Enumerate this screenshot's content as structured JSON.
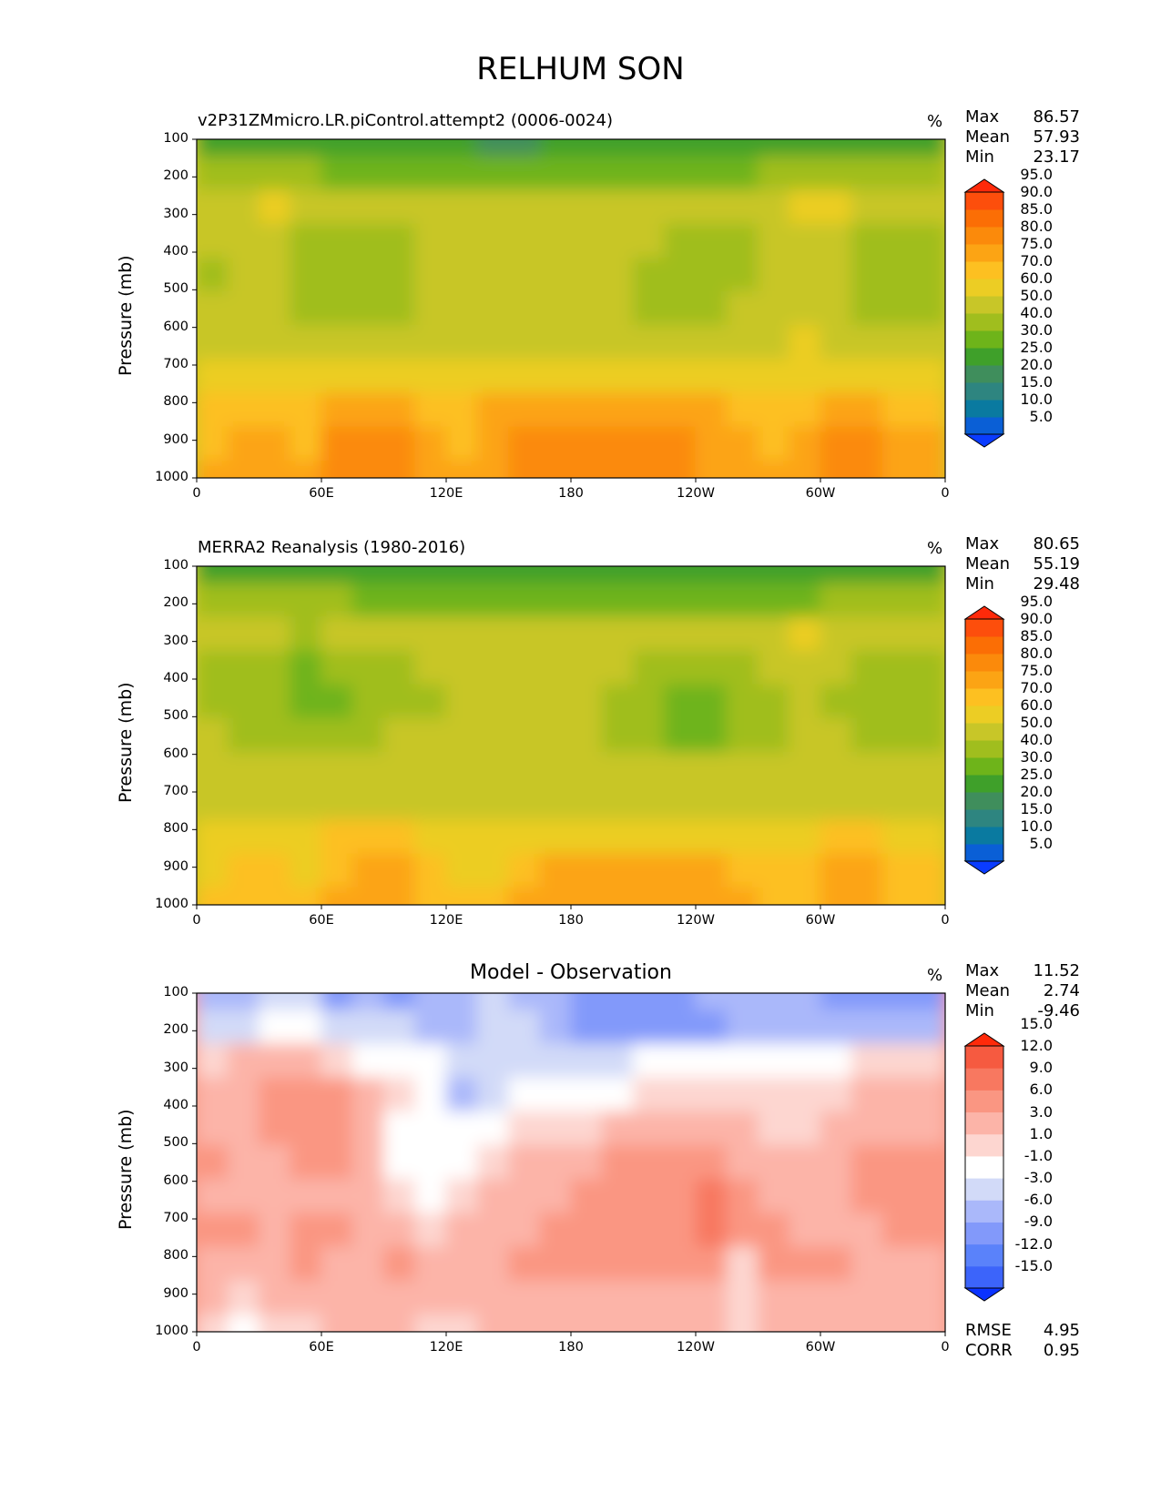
{
  "title": "RELHUM SON",
  "chart_data": [
    {
      "type": "heatmap",
      "panel": "test",
      "title": "v2P31ZMmicro.LR.piControl.attempt2 (0006-0024)",
      "units": "%",
      "ylabel": "Pressure (mb)",
      "xticks": [
        "0",
        "60E",
        "120E",
        "180",
        "120W",
        "60W",
        "0"
      ],
      "yticks": [
        "100",
        "200",
        "300",
        "400",
        "500",
        "600",
        "700",
        "800",
        "900",
        "1000"
      ],
      "xlim": [
        0,
        360
      ],
      "ylim": [
        1000,
        100
      ],
      "stats": {
        "max_label": "Max",
        "max": "86.57",
        "mean_label": "Mean",
        "mean": "57.93",
        "min_label": "Min",
        "min": "23.17"
      },
      "colorbar": {
        "levels": [
          "5.0",
          "10.0",
          "15.0",
          "20.0",
          "25.0",
          "30.0",
          "40.0",
          "50.0",
          "60.0",
          "70.0",
          "75.0",
          "80.0",
          "85.0",
          "90.0",
          "95.0"
        ],
        "colors": [
          "#0a3cff",
          "#0a5fd6",
          "#0a7aa0",
          "#2e8580",
          "#3f8e5c",
          "#3fa02a",
          "#6eb41a",
          "#a0be1e",
          "#c8c628",
          "#eccd24",
          "#fdc021",
          "#fca414",
          "#fb8a0b",
          "#fb6e05",
          "#fd4e0c",
          "#ff2a0a"
        ]
      },
      "fill_grid": [
        [
          5,
          5,
          5,
          5,
          5,
          5,
          5,
          5,
          5,
          4,
          4,
          5,
          5,
          5,
          5,
          5,
          5,
          5,
          5,
          5,
          5,
          5,
          5,
          5
        ],
        [
          7,
          7,
          7,
          7,
          6,
          6,
          6,
          6,
          6,
          6,
          6,
          6,
          6,
          6,
          6,
          6,
          6,
          6,
          7,
          7,
          7,
          7,
          7,
          7
        ],
        [
          8,
          8,
          9,
          8,
          8,
          8,
          8,
          8,
          8,
          8,
          8,
          8,
          8,
          8,
          8,
          8,
          8,
          8,
          8,
          9,
          9,
          8,
          8,
          8
        ],
        [
          8,
          8,
          8,
          7,
          7,
          7,
          7,
          8,
          8,
          8,
          8,
          8,
          8,
          8,
          8,
          7,
          7,
          7,
          8,
          8,
          8,
          7,
          7,
          7
        ],
        [
          7,
          8,
          8,
          7,
          7,
          7,
          7,
          8,
          8,
          8,
          8,
          8,
          8,
          8,
          7,
          7,
          7,
          7,
          8,
          8,
          8,
          7,
          7,
          7
        ],
        [
          8,
          8,
          8,
          7,
          7,
          7,
          7,
          8,
          8,
          8,
          8,
          8,
          8,
          8,
          7,
          7,
          7,
          8,
          8,
          8,
          8,
          7,
          7,
          7
        ],
        [
          8,
          8,
          8,
          8,
          8,
          8,
          8,
          8,
          8,
          8,
          8,
          8,
          8,
          8,
          8,
          8,
          8,
          8,
          8,
          9,
          8,
          8,
          8,
          8
        ],
        [
          9,
          9,
          9,
          9,
          9,
          9,
          9,
          9,
          9,
          9,
          9,
          9,
          9,
          9,
          9,
          9,
          9,
          9,
          9,
          9,
          9,
          9,
          9,
          9
        ],
        [
          10,
          10,
          10,
          10,
          11,
          11,
          11,
          10,
          10,
          11,
          11,
          11,
          11,
          11,
          11,
          11,
          11,
          10,
          10,
          10,
          11,
          11,
          10,
          10
        ],
        [
          10,
          11,
          11,
          10,
          12,
          12,
          12,
          11,
          10,
          11,
          12,
          12,
          12,
          12,
          12,
          12,
          11,
          11,
          10,
          11,
          12,
          12,
          11,
          11
        ],
        [
          11,
          11,
          11,
          11,
          12,
          12,
          12,
          11,
          11,
          11,
          12,
          12,
          12,
          12,
          12,
          12,
          11,
          11,
          11,
          11,
          12,
          12,
          11,
          11
        ]
      ]
    },
    {
      "type": "heatmap",
      "panel": "reference",
      "title": "MERRA2 Reanalysis (1980-2016)",
      "units": "%",
      "ylabel": "Pressure (mb)",
      "xticks": [
        "0",
        "60E",
        "120E",
        "180",
        "120W",
        "60W",
        "0"
      ],
      "yticks": [
        "100",
        "200",
        "300",
        "400",
        "500",
        "600",
        "700",
        "800",
        "900",
        "1000"
      ],
      "xlim": [
        0,
        360
      ],
      "ylim": [
        1000,
        100
      ],
      "stats": {
        "max_label": "Max",
        "max": "80.65",
        "mean_label": "Mean",
        "mean": "55.19",
        "min_label": "Min",
        "min": "29.48"
      },
      "colorbar": {
        "levels": [
          "5.0",
          "10.0",
          "15.0",
          "20.0",
          "25.0",
          "30.0",
          "40.0",
          "50.0",
          "60.0",
          "70.0",
          "75.0",
          "80.0",
          "85.0",
          "90.0",
          "95.0"
        ],
        "colors": [
          "#0a3cff",
          "#0a5fd6",
          "#0a7aa0",
          "#2e8580",
          "#3f8e5c",
          "#3fa02a",
          "#6eb41a",
          "#a0be1e",
          "#c8c628",
          "#eccd24",
          "#fdc021",
          "#fca414",
          "#fb8a0b",
          "#fb6e05",
          "#fd4e0c",
          "#ff2a0a"
        ]
      },
      "fill_grid": [
        [
          5,
          5,
          5,
          5,
          5,
          5,
          5,
          5,
          5,
          5,
          5,
          5,
          5,
          5,
          5,
          5,
          5,
          5,
          5,
          5,
          5,
          5,
          5,
          5
        ],
        [
          7,
          7,
          7,
          7,
          7,
          6,
          6,
          6,
          6,
          6,
          6,
          6,
          6,
          6,
          6,
          6,
          6,
          6,
          6,
          6,
          7,
          7,
          7,
          7
        ],
        [
          8,
          8,
          8,
          7,
          8,
          8,
          8,
          8,
          8,
          8,
          8,
          8,
          8,
          8,
          8,
          8,
          8,
          8,
          8,
          9,
          8,
          8,
          8,
          8
        ],
        [
          7,
          7,
          7,
          6,
          7,
          7,
          7,
          8,
          8,
          8,
          8,
          8,
          8,
          8,
          7,
          7,
          7,
          7,
          8,
          8,
          8,
          7,
          7,
          7
        ],
        [
          7,
          7,
          7,
          6,
          6,
          7,
          7,
          7,
          8,
          8,
          8,
          8,
          8,
          7,
          7,
          6,
          6,
          7,
          7,
          8,
          7,
          7,
          7,
          7
        ],
        [
          8,
          7,
          7,
          7,
          7,
          7,
          8,
          8,
          8,
          8,
          8,
          8,
          8,
          7,
          7,
          6,
          6,
          7,
          7,
          8,
          8,
          7,
          7,
          7
        ],
        [
          8,
          8,
          8,
          8,
          8,
          8,
          8,
          8,
          8,
          8,
          8,
          8,
          8,
          8,
          8,
          8,
          8,
          8,
          8,
          8,
          8,
          8,
          8,
          8
        ],
        [
          8,
          8,
          8,
          8,
          8,
          8,
          8,
          8,
          8,
          8,
          8,
          8,
          8,
          8,
          8,
          8,
          8,
          8,
          8,
          8,
          8,
          8,
          8,
          8
        ],
        [
          9,
          9,
          9,
          9,
          10,
          10,
          10,
          9,
          9,
          9,
          9,
          9,
          9,
          9,
          9,
          9,
          9,
          9,
          9,
          9,
          10,
          10,
          9,
          9
        ],
        [
          9,
          10,
          10,
          9,
          10,
          11,
          11,
          10,
          9,
          9,
          10,
          11,
          11,
          11,
          11,
          11,
          11,
          10,
          10,
          10,
          11,
          11,
          10,
          10
        ],
        [
          10,
          10,
          10,
          10,
          11,
          11,
          11,
          10,
          10,
          10,
          11,
          11,
          11,
          11,
          11,
          11,
          11,
          11,
          10,
          10,
          11,
          11,
          10,
          10
        ]
      ]
    },
    {
      "type": "heatmap",
      "panel": "difference",
      "title": "Model - Observation",
      "units": "%",
      "ylabel": "Pressure (mb)",
      "xticks": [
        "0",
        "60E",
        "120E",
        "180",
        "120W",
        "60W",
        "0"
      ],
      "yticks": [
        "100",
        "200",
        "300",
        "400",
        "500",
        "600",
        "700",
        "800",
        "900",
        "1000"
      ],
      "xlim": [
        0,
        360
      ],
      "ylim": [
        1000,
        100
      ],
      "stats": {
        "max_label": "Max",
        "max": "11.52",
        "mean_label": "Mean",
        "mean": "2.74",
        "min_label": "Min",
        "min": "-9.46"
      },
      "extra_stats": {
        "rmse_label": "RMSE",
        "rmse": "4.95",
        "corr_label": "CORR",
        "corr": "0.95"
      },
      "colorbar": {
        "levels": [
          "-15.0",
          "-12.0",
          "-9.0",
          "-6.0",
          "-3.0",
          "-1.0",
          "1.0",
          "3.0",
          "6.0",
          "9.0",
          "12.0",
          "15.0"
        ],
        "colors": [
          "#0a32ff",
          "#3c64fa",
          "#5a82fa",
          "#8299fa",
          "#aab8fa",
          "#d2daf8",
          "#ffffff",
          "#fdd6d0",
          "#fcb4a8",
          "#fa9682",
          "#f87860",
          "#f65a40",
          "#ff2a0a"
        ]
      },
      "fill_grid": [
        [
          4,
          4,
          5,
          5,
          3,
          4,
          3,
          4,
          4,
          5,
          4,
          4,
          3,
          3,
          3,
          3,
          4,
          4,
          4,
          4,
          3,
          3,
          3,
          3
        ],
        [
          5,
          5,
          6,
          6,
          5,
          5,
          5,
          4,
          4,
          5,
          5,
          4,
          3,
          3,
          3,
          3,
          3,
          4,
          4,
          4,
          4,
          4,
          4,
          4
        ],
        [
          7,
          8,
          8,
          8,
          7,
          6,
          6,
          6,
          5,
          5,
          5,
          5,
          5,
          5,
          6,
          6,
          6,
          6,
          6,
          6,
          6,
          7,
          7,
          7
        ],
        [
          8,
          8,
          9,
          9,
          9,
          8,
          7,
          6,
          4,
          5,
          6,
          6,
          6,
          6,
          7,
          7,
          7,
          7,
          7,
          7,
          7,
          8,
          8,
          8
        ],
        [
          8,
          8,
          9,
          9,
          9,
          8,
          6,
          6,
          6,
          6,
          7,
          7,
          7,
          8,
          8,
          8,
          8,
          8,
          7,
          7,
          8,
          8,
          8,
          8
        ],
        [
          9,
          8,
          8,
          9,
          9,
          8,
          6,
          6,
          6,
          7,
          8,
          8,
          8,
          9,
          9,
          9,
          9,
          8,
          8,
          8,
          8,
          9,
          9,
          9
        ],
        [
          8,
          8,
          8,
          8,
          8,
          8,
          7,
          6,
          7,
          8,
          8,
          8,
          9,
          9,
          9,
          9,
          10,
          9,
          8,
          8,
          8,
          9,
          9,
          9
        ],
        [
          9,
          9,
          8,
          9,
          9,
          8,
          8,
          7,
          8,
          8,
          8,
          9,
          9,
          9,
          9,
          9,
          10,
          9,
          9,
          8,
          8,
          8,
          9,
          9
        ],
        [
          8,
          8,
          8,
          9,
          8,
          8,
          9,
          8,
          8,
          8,
          9,
          9,
          9,
          9,
          9,
          9,
          9,
          7,
          9,
          9,
          9,
          8,
          8,
          8
        ],
        [
          8,
          7,
          8,
          8,
          8,
          8,
          8,
          8,
          8,
          8,
          8,
          8,
          8,
          8,
          8,
          8,
          8,
          7,
          8,
          8,
          8,
          8,
          8,
          8
        ],
        [
          7,
          6,
          7,
          7,
          8,
          8,
          8,
          7,
          7,
          8,
          8,
          8,
          8,
          8,
          8,
          8,
          8,
          7,
          8,
          8,
          8,
          8,
          8,
          8
        ]
      ]
    }
  ]
}
